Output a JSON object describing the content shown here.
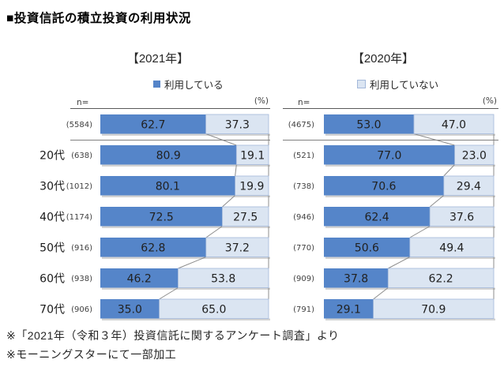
{
  "title": "■投資信託の積立投資の利用状況",
  "footnotes": [
    "※「2021年（令和３年）投資信託に関するアンケート調査」より",
    "※モーニングスターにて一部加工"
  ],
  "colors": {
    "using": "#5585c9",
    "not_using": "#dbe5f2",
    "segment_border": "#a3b8da",
    "axis": "#595959",
    "separator": "#808080",
    "connector": "#8c8c8c",
    "shadow": "#d3d3d3",
    "value_text": "#212121",
    "small_text": "#404040"
  },
  "chart_data": [
    {
      "type": "bar",
      "title": "【2021年】",
      "n_label": "n=",
      "unit_label": "(%)",
      "categories": [
        "",
        "20代",
        "30代",
        "40代",
        "50代",
        "60代",
        "70代"
      ],
      "n": [
        5584,
        638,
        1012,
        1174,
        916,
        938,
        906
      ],
      "series": [
        {
          "name": "利用している",
          "values": [
            62.7,
            80.9,
            80.1,
            72.5,
            62.8,
            46.2,
            35.0
          ]
        },
        {
          "name": "利用していない",
          "values": [
            37.3,
            19.1,
            19.9,
            27.5,
            37.2,
            53.8,
            65.0
          ]
        }
      ],
      "xlim": [
        0,
        100
      ],
      "orientation": "horizontal-stacked"
    },
    {
      "type": "bar",
      "title": "【2020年】",
      "n_label": "n=",
      "unit_label": "(%)",
      "categories": [
        "",
        "20代",
        "30代",
        "40代",
        "50代",
        "60代",
        "70代"
      ],
      "n": [
        4675,
        521,
        738,
        946,
        770,
        909,
        791
      ],
      "series": [
        {
          "name": "利用している",
          "values": [
            53.0,
            77.0,
            70.6,
            62.4,
            50.6,
            37.8,
            29.1
          ]
        },
        {
          "name": "利用していない",
          "values": [
            47.0,
            23.0,
            29.4,
            37.6,
            49.4,
            62.2,
            70.9
          ]
        }
      ],
      "xlim": [
        0,
        100
      ],
      "orientation": "horizontal-stacked"
    }
  ]
}
